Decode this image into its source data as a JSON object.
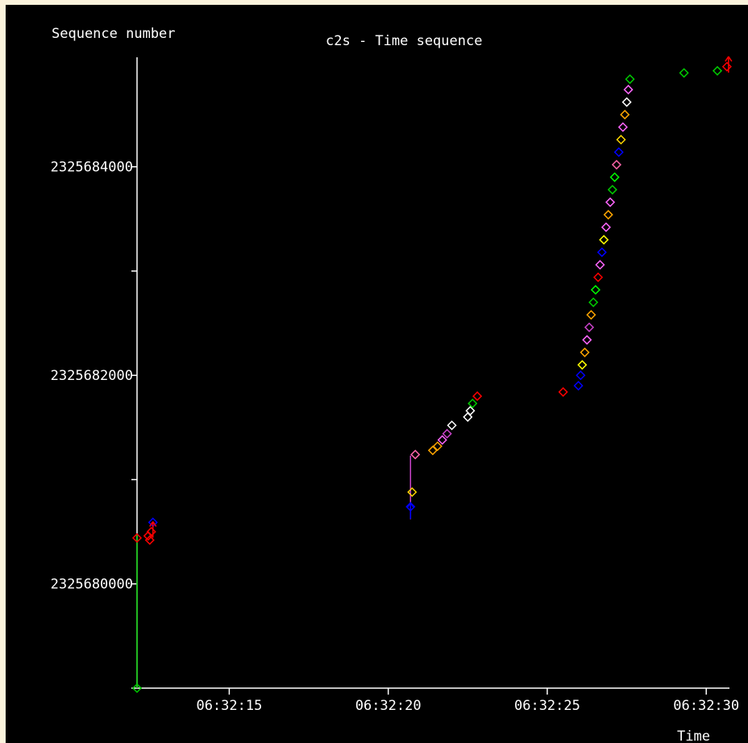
{
  "chart_data": {
    "type": "scatter",
    "title": "c2s - Time sequence",
    "ylabel": "Sequence number",
    "xlabel": "Time",
    "y_ticks": [
      {
        "label": "2325680000",
        "value": 2325680000
      },
      {
        "label": "2325682000",
        "value": 2325682000
      },
      {
        "label": "2325684000",
        "value": 2325684000
      }
    ],
    "y_minor_ticks": [
      2325679000,
      2325681000,
      2325683000
    ],
    "x_ticks": [
      {
        "label": "06:32:15",
        "value": 15.0
      },
      {
        "label": "06:32:20",
        "value": 20.0
      },
      {
        "label": "06:32:25",
        "value": 25.0
      },
      {
        "label": "06:32:30",
        "value": 30.0
      }
    ],
    "xlim": [
      12.1,
      30.73
    ],
    "ylim": [
      2325679000,
      2325685050
    ],
    "colors": {
      "background": "#000000",
      "axis": "#ffffff",
      "frame": "#fbf3dc",
      "syn_line": "#00cc00",
      "retrans_line": "#cc44cc"
    },
    "vertical_lines": [
      {
        "x": 12.1,
        "y0": 2325679000,
        "y1": 2325680480,
        "color": "#00cc00"
      },
      {
        "x": 20.7,
        "y0": 2325680620,
        "y1": 2325681230,
        "color": "#cc44cc"
      }
    ],
    "points": [
      {
        "x": 12.1,
        "y": 2325679000,
        "color": "#00cc00"
      },
      {
        "x": 12.1,
        "y": 2325680440,
        "color": "#ff0000"
      },
      {
        "x": 12.45,
        "y": 2325680460,
        "color": "#ff0000"
      },
      {
        "x": 12.5,
        "y": 2325680420,
        "color": "#ff0000"
      },
      {
        "x": 12.55,
        "y": 2325680500,
        "color": "#ff0000"
      },
      {
        "x": 12.6,
        "y": 2325680590,
        "color": "#0000ff"
      },
      {
        "x": 20.7,
        "y": 2325680740,
        "color": "#0000ff"
      },
      {
        "x": 20.75,
        "y": 2325680880,
        "color": "#ffd700"
      },
      {
        "x": 20.85,
        "y": 2325681240,
        "color": "#ff66aa"
      },
      {
        "x": 21.4,
        "y": 2325681280,
        "color": "#ffa500"
      },
      {
        "x": 21.55,
        "y": 2325681320,
        "color": "#ffa500"
      },
      {
        "x": 21.7,
        "y": 2325681380,
        "color": "#ff66ff"
      },
      {
        "x": 21.85,
        "y": 2325681440,
        "color": "#cc44cc"
      },
      {
        "x": 22.0,
        "y": 2325681520,
        "color": "#ffffff"
      },
      {
        "x": 22.5,
        "y": 2325681600,
        "color": "#ffffff"
      },
      {
        "x": 22.58,
        "y": 2325681660,
        "color": "#ffffff"
      },
      {
        "x": 22.65,
        "y": 2325681730,
        "color": "#00cc00"
      },
      {
        "x": 22.8,
        "y": 2325681800,
        "color": "#ff0000"
      },
      {
        "x": 25.5,
        "y": 2325681840,
        "color": "#ff0000"
      },
      {
        "x": 25.98,
        "y": 2325681900,
        "color": "#0000ff"
      },
      {
        "x": 26.05,
        "y": 2325682000,
        "color": "#0000ff"
      },
      {
        "x": 26.1,
        "y": 2325682100,
        "color": "#ffff00"
      },
      {
        "x": 26.18,
        "y": 2325682220,
        "color": "#ffa500"
      },
      {
        "x": 26.25,
        "y": 2325682340,
        "color": "#ff66ff"
      },
      {
        "x": 26.32,
        "y": 2325682460,
        "color": "#cc44cc"
      },
      {
        "x": 26.38,
        "y": 2325682580,
        "color": "#ffa500"
      },
      {
        "x": 26.45,
        "y": 2325682700,
        "color": "#00cc00"
      },
      {
        "x": 26.52,
        "y": 2325682820,
        "color": "#00ff00"
      },
      {
        "x": 26.6,
        "y": 2325682940,
        "color": "#ff0000"
      },
      {
        "x": 26.66,
        "y": 2325683060,
        "color": "#ff66ff"
      },
      {
        "x": 26.72,
        "y": 2325683180,
        "color": "#0000ff"
      },
      {
        "x": 26.78,
        "y": 2325683300,
        "color": "#ffff00"
      },
      {
        "x": 26.85,
        "y": 2325683420,
        "color": "#ff66ff"
      },
      {
        "x": 26.92,
        "y": 2325683540,
        "color": "#ffa500"
      },
      {
        "x": 26.98,
        "y": 2325683660,
        "color": "#ff66ff"
      },
      {
        "x": 27.05,
        "y": 2325683780,
        "color": "#00cc00"
      },
      {
        "x": 27.12,
        "y": 2325683900,
        "color": "#00ff00"
      },
      {
        "x": 27.18,
        "y": 2325684020,
        "color": "#ff66aa"
      },
      {
        "x": 27.25,
        "y": 2325684140,
        "color": "#0000ff"
      },
      {
        "x": 27.32,
        "y": 2325684260,
        "color": "#ffd700"
      },
      {
        "x": 27.38,
        "y": 2325684380,
        "color": "#ff66ff"
      },
      {
        "x": 27.44,
        "y": 2325684500,
        "color": "#ffa500"
      },
      {
        "x": 27.5,
        "y": 2325684620,
        "color": "#ffffff"
      },
      {
        "x": 27.55,
        "y": 2325684740,
        "color": "#ff66ff"
      },
      {
        "x": 27.6,
        "y": 2325684840,
        "color": "#00cc00"
      },
      {
        "x": 29.3,
        "y": 2325684900,
        "color": "#00cc00"
      },
      {
        "x": 30.35,
        "y": 2325684920,
        "color": "#00cc00"
      },
      {
        "x": 30.65,
        "y": 2325684960,
        "color": "#ff0000"
      }
    ],
    "ticks_marks": [
      {
        "x": 12.6,
        "y": 2325680520,
        "color": "#ff0000"
      },
      {
        "x": 20.7,
        "y": 2325680700,
        "color": "#0000ff"
      },
      {
        "x": 30.7,
        "y": 2325684980,
        "color": "#ff0000"
      }
    ],
    "grid": false,
    "legend": "none"
  }
}
